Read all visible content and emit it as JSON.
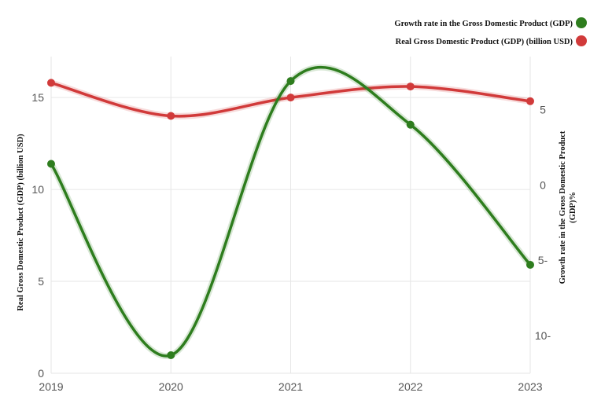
{
  "chart_data": {
    "type": "line",
    "x": [
      "2019",
      "2020",
      "2021",
      "2022",
      "2023"
    ],
    "series": [
      {
        "name": "Growth rate in the Gross Domestic Product (GDP)",
        "axis": "right",
        "color": "#2e7d1e",
        "values": [
          1.4,
          -11.3,
          6.9,
          4.0,
          -5.3
        ]
      },
      {
        "name": "Real Gross Domestic Product (GDP) (billion USD)",
        "axis": "left",
        "color": "#d13a3a",
        "values": [
          15.8,
          14.0,
          15.0,
          15.6,
          14.8
        ]
      }
    ],
    "ylabel_left": "Real Gross Domestic Product (GDP) (billion USD)",
    "ylabel_right": "Growth rate in the Gross Domestic Product (GDP)%",
    "ylim_left": [
      0,
      16.8
    ],
    "yticks_left": [
      "0",
      "5",
      "10",
      "15"
    ],
    "ylim_right": [
      -12.5,
      8.0
    ],
    "yticks_right": [
      {
        "value": 5,
        "label": "5"
      },
      {
        "value": 0,
        "label": "0"
      },
      {
        "value": -5,
        "label": "5-"
      },
      {
        "value": -10,
        "label": "10-"
      }
    ],
    "grid": true,
    "legend_position": "top-right"
  }
}
